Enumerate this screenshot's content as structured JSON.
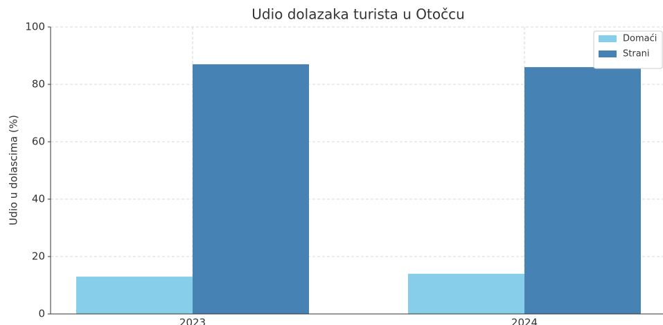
{
  "chart_data": {
    "type": "bar",
    "title": "Udio dolazaka turista u Otočcu",
    "ylabel": "Udio u dolascima (%)",
    "categories": [
      "2023",
      "2024"
    ],
    "series": [
      {
        "name": "Domaći",
        "color": "#87ceeb",
        "values": [
          13,
          14
        ]
      },
      {
        "name": "Strani",
        "color": "#4682b4",
        "values": [
          87,
          86
        ]
      }
    ],
    "ylim": [
      0,
      100
    ],
    "yticks": [
      0,
      20,
      40,
      60,
      80,
      100
    ],
    "grid": true,
    "legend": "upper right"
  }
}
